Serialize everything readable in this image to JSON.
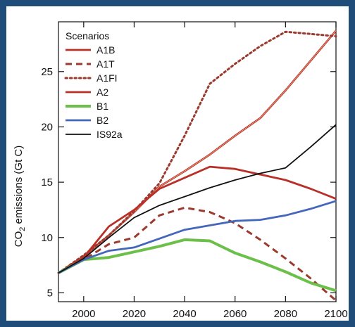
{
  "chart_data": {
    "type": "line",
    "ylabel_parts": [
      "CO",
      "2",
      " emissions (Gt C)"
    ],
    "xlim": [
      1990,
      2100
    ],
    "ylim": [
      4.2,
      29.5
    ],
    "xticks": [
      2000,
      2020,
      2040,
      2060,
      2080,
      2100
    ],
    "yticks": [
      5,
      10,
      15,
      20,
      25
    ],
    "legend": {
      "title": "Scenarios",
      "placement": "top-left"
    },
    "series": [
      {
        "name": "A1B",
        "color": "#b83028",
        "style": "solid-highlight",
        "x": [
          1990,
          2000,
          2010,
          2020,
          2030,
          2040,
          2050,
          2060,
          2070,
          2080,
          2090,
          2100
        ],
        "y": [
          6.8,
          8.3,
          10.2,
          12.3,
          14.6,
          16.0,
          17.5,
          19.2,
          20.8,
          23.3,
          26.0,
          28.7
        ]
      },
      {
        "name": "A1T",
        "color": "#9b3a2e",
        "style": "dashed",
        "x": [
          1990,
          2000,
          2010,
          2020,
          2030,
          2040,
          2050,
          2060,
          2070,
          2080,
          2090,
          2100
        ],
        "y": [
          6.8,
          8.0,
          9.4,
          10.0,
          12.0,
          12.7,
          12.3,
          11.3,
          9.8,
          8.1,
          6.3,
          4.3
        ]
      },
      {
        "name": "A1FI",
        "color": "#9b3a2e",
        "style": "dotted",
        "x": [
          1990,
          2000,
          2010,
          2020,
          2030,
          2040,
          2050,
          2060,
          2070,
          2080,
          2090,
          2100
        ],
        "y": [
          6.8,
          8.4,
          10.2,
          12.4,
          14.9,
          19.2,
          23.9,
          25.7,
          27.3,
          28.6,
          28.4,
          28.2
        ]
      },
      {
        "name": "A2",
        "color": "#b83028",
        "style": "solid",
        "x": [
          1990,
          2000,
          2010,
          2020,
          2030,
          2040,
          2050,
          2060,
          2070,
          2080,
          2090,
          2100
        ],
        "y": [
          6.8,
          8.2,
          11.0,
          12.5,
          14.4,
          15.4,
          16.4,
          16.2,
          15.7,
          15.2,
          14.4,
          13.5
        ]
      },
      {
        "name": "B1",
        "color": "#6cc04a",
        "style": "solid-thick",
        "x": [
          1990,
          2000,
          2010,
          2020,
          2030,
          2040,
          2050,
          2060,
          2070,
          2080,
          2090,
          2100
        ],
        "y": [
          6.8,
          8.0,
          8.2,
          8.7,
          9.2,
          9.8,
          9.7,
          8.6,
          7.8,
          6.9,
          5.9,
          5.2
        ]
      },
      {
        "name": "B2",
        "color": "#4466bb",
        "style": "solid",
        "x": [
          1990,
          2000,
          2010,
          2020,
          2030,
          2040,
          2050,
          2060,
          2070,
          2080,
          2090,
          2100
        ],
        "y": [
          6.8,
          8.0,
          8.8,
          9.1,
          9.9,
          10.7,
          11.1,
          11.5,
          11.6,
          12.0,
          12.6,
          13.3
        ]
      },
      {
        "name": "IS92a",
        "color": "#111111",
        "style": "solid-thin",
        "x": [
          1990,
          2000,
          2010,
          2020,
          2030,
          2040,
          2050,
          2060,
          2070,
          2080,
          2090,
          2100
        ],
        "y": [
          6.8,
          8.1,
          10.0,
          11.8,
          12.9,
          13.7,
          14.5,
          15.2,
          15.8,
          16.3,
          18.2,
          20.2
        ]
      }
    ]
  }
}
